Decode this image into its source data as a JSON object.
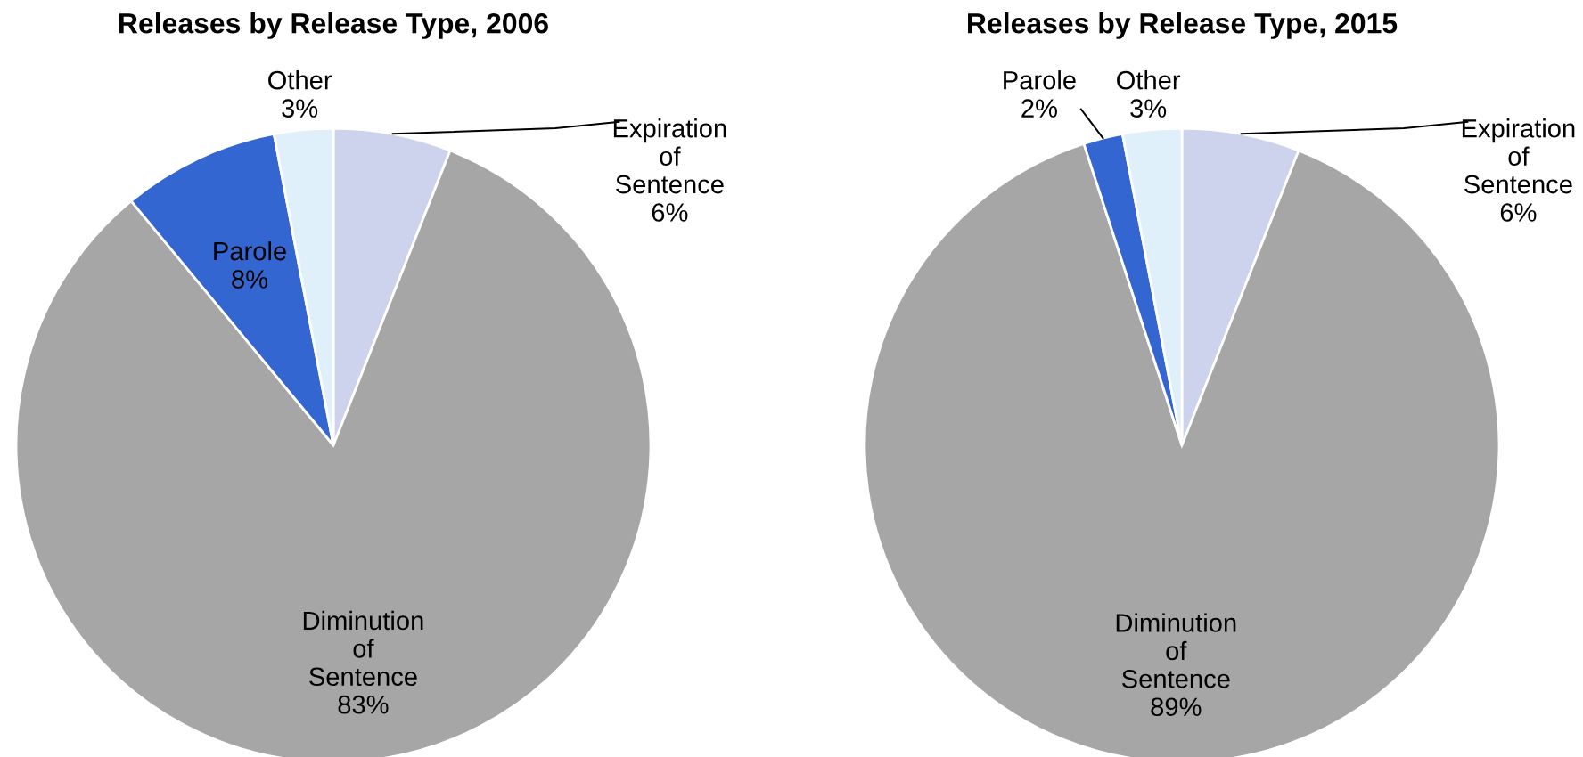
{
  "chart_data": [
    {
      "type": "pie",
      "title": "Releases by Release Type, 2006",
      "categories": [
        "Expiration of Sentence",
        "Diminution of Sentence",
        "Parole",
        "Other"
      ],
      "values": [
        6,
        83,
        8,
        3
      ],
      "value_labels": [
        "6%",
        "83%",
        "8%",
        "3%"
      ],
      "colors": [
        "#cdd3ec",
        "#a6a6a6",
        "#3366d0",
        "#dff0fb"
      ],
      "legend": false
    },
    {
      "type": "pie",
      "title": "Releases by Release Type, 2015",
      "categories": [
        "Expiration of Sentence",
        "Diminution of Sentence",
        "Parole",
        "Other"
      ],
      "values": [
        6,
        89,
        2,
        3
      ],
      "value_labels": [
        "6%",
        "89%",
        "2%",
        "3%"
      ],
      "colors": [
        "#cdd3ec",
        "#a6a6a6",
        "#3366d0",
        "#dff0fb"
      ],
      "legend": false
    }
  ]
}
